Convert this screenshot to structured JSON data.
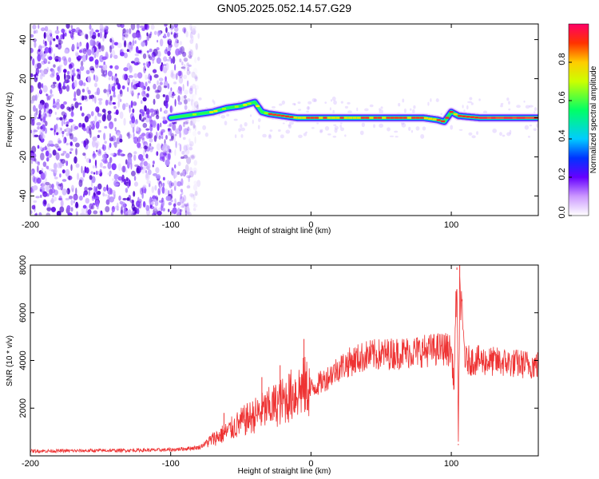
{
  "figure": {
    "title": "GN05.2025.052.14.57.G29"
  },
  "chart_data": [
    {
      "type": "heatmap",
      "xlabel": "Height of straight line (km)",
      "ylabel": "Frequency (Hz)",
      "xlim": [
        -200,
        162
      ],
      "ylim": [
        -50,
        48
      ],
      "xticks": [
        "-200",
        "-100",
        "0",
        "100"
      ],
      "yticks": [
        "-40",
        "-20",
        "0",
        "20",
        "40"
      ],
      "colorbar": {
        "label": "Normalized spectral amplitude",
        "range": [
          0.0,
          1.0
        ],
        "ticks": [
          "0.0",
          "0.2",
          "0.4",
          "0.6",
          "0.8"
        ],
        "colors": [
          "#ffffff",
          "#9933ff",
          "#3300ff",
          "#00ccff",
          "#00ff66",
          "#ffff00",
          "#ff3300",
          "#ff0066"
        ]
      },
      "signal_track": {
        "x": [
          -100,
          -90,
          -80,
          -70,
          -60,
          -50,
          -45,
          -40,
          -35,
          -30,
          -20,
          -10,
          0,
          20,
          40,
          60,
          80,
          90,
          95,
          100,
          105,
          120,
          140,
          162
        ],
        "y": [
          0,
          1,
          2,
          3,
          5,
          6,
          7,
          8,
          3,
          2,
          1,
          0,
          0,
          0,
          0,
          0,
          0,
          -1,
          -2,
          3,
          1,
          0,
          0,
          0
        ]
      },
      "noise_region_x": [
        -200,
        -80
      ],
      "grid": false
    },
    {
      "type": "line",
      "xlabel": "Height of straight line (km)",
      "ylabel": "SNR (10 * v/v)",
      "xlim": [
        -200,
        162
      ],
      "ylim": [
        0,
        8000
      ],
      "xticks": [
        "-200",
        "-100",
        "0",
        "100"
      ],
      "yticks": [
        "2000",
        "4000",
        "6000",
        "8000"
      ],
      "series": [
        {
          "color": "#ee3333",
          "x": [
            -200,
            -150,
            -100,
            -80,
            -70,
            -60,
            -50,
            -40,
            -30,
            -20,
            -10,
            -5,
            0,
            10,
            20,
            30,
            40,
            60,
            80,
            95,
            100,
            102,
            104,
            105,
            106,
            110,
            120,
            140,
            162
          ],
          "y": [
            200,
            220,
            250,
            350,
            700,
            1000,
            1400,
            1700,
            2000,
            2300,
            2700,
            2900,
            2800,
            3200,
            3700,
            4000,
            4200,
            4300,
            4400,
            4500,
            4400,
            3000,
            7800,
            500,
            7000,
            4000,
            4000,
            3900,
            3800
          ]
        }
      ],
      "spikes": [
        {
          "x": -5,
          "y": 4900
        },
        {
          "x": -22,
          "y": 3800
        },
        {
          "x": -35,
          "y": 3300
        },
        {
          "x": -62,
          "y": 1800
        },
        {
          "x": 104,
          "y": 7900
        },
        {
          "x": 106,
          "y": 8000
        },
        {
          "x": 105,
          "y": 450
        }
      ],
      "grid": false
    }
  ]
}
